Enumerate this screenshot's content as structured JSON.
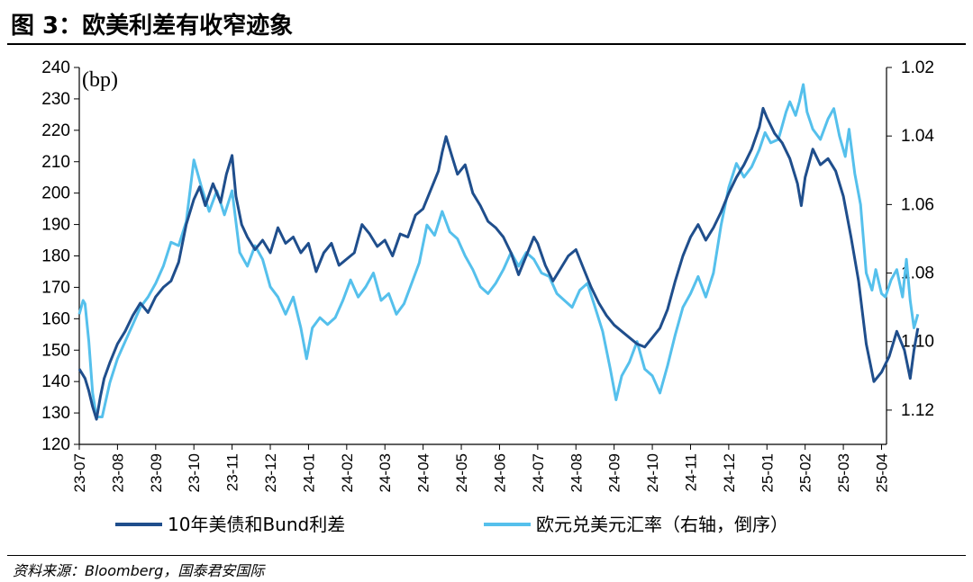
{
  "figure": {
    "title": "图 3：欧美利差有收窄迹象",
    "source": "资料来源：Bloomberg，国泰君安国际"
  },
  "chart_data": {
    "type": "line",
    "unit_label": "(bp)",
    "x_tick_labels": [
      "23-07",
      "23-08",
      "23-09",
      "23-10",
      "23-11",
      "23-12",
      "24-01",
      "24-02",
      "24-03",
      "24-04",
      "24-05",
      "24-06",
      "24-07",
      "24-08",
      "24-09",
      "24-10",
      "24-11",
      "24-12",
      "25-01",
      "25-02",
      "25-03",
      "25-04"
    ],
    "y_left": {
      "min": 120,
      "max": 240,
      "ticks": [
        120,
        130,
        140,
        150,
        160,
        170,
        180,
        190,
        200,
        210,
        220,
        230,
        240
      ]
    },
    "y_right": {
      "min": 1.02,
      "max": 1.13,
      "inverted": true,
      "ticks": [
        "1.02",
        "1.04",
        "1.06",
        "1.08",
        "1.10",
        "1.12"
      ]
    },
    "series": [
      {
        "name": "10年美债和Bund利差",
        "axis": "left",
        "color": "#1f4e8c",
        "points": [
          [
            0,
            144
          ],
          [
            0.15,
            141
          ],
          [
            0.25,
            137
          ],
          [
            0.35,
            132
          ],
          [
            0.45,
            128
          ],
          [
            0.55,
            135
          ],
          [
            0.65,
            141
          ],
          [
            0.8,
            146
          ],
          [
            1.0,
            152
          ],
          [
            1.2,
            156
          ],
          [
            1.4,
            161
          ],
          [
            1.6,
            165
          ],
          [
            1.8,
            162
          ],
          [
            2.0,
            167
          ],
          [
            2.2,
            170
          ],
          [
            2.4,
            172
          ],
          [
            2.6,
            178
          ],
          [
            2.8,
            190
          ],
          [
            3.0,
            198
          ],
          [
            3.15,
            202
          ],
          [
            3.3,
            196
          ],
          [
            3.5,
            203
          ],
          [
            3.7,
            197
          ],
          [
            3.85,
            206
          ],
          [
            4.0,
            212
          ],
          [
            4.1,
            199
          ],
          [
            4.25,
            190
          ],
          [
            4.4,
            186
          ],
          [
            4.6,
            182
          ],
          [
            4.8,
            185
          ],
          [
            5.0,
            181
          ],
          [
            5.2,
            189
          ],
          [
            5.4,
            184
          ],
          [
            5.6,
            186
          ],
          [
            5.8,
            181
          ],
          [
            6.0,
            184
          ],
          [
            6.2,
            175
          ],
          [
            6.4,
            181
          ],
          [
            6.6,
            184
          ],
          [
            6.8,
            177
          ],
          [
            7.0,
            179
          ],
          [
            7.2,
            181
          ],
          [
            7.4,
            190
          ],
          [
            7.6,
            187
          ],
          [
            7.8,
            183
          ],
          [
            8.0,
            185
          ],
          [
            8.2,
            180
          ],
          [
            8.4,
            187
          ],
          [
            8.6,
            186
          ],
          [
            8.8,
            193
          ],
          [
            9.0,
            195
          ],
          [
            9.2,
            201
          ],
          [
            9.4,
            207
          ],
          [
            9.5,
            213
          ],
          [
            9.6,
            218
          ],
          [
            9.75,
            212
          ],
          [
            9.9,
            206
          ],
          [
            10.1,
            209
          ],
          [
            10.3,
            200
          ],
          [
            10.5,
            196
          ],
          [
            10.7,
            191
          ],
          [
            10.9,
            189
          ],
          [
            11.1,
            186
          ],
          [
            11.3,
            181
          ],
          [
            11.5,
            174
          ],
          [
            11.7,
            180
          ],
          [
            11.9,
            186
          ],
          [
            12.0,
            184
          ],
          [
            12.2,
            177
          ],
          [
            12.4,
            172
          ],
          [
            12.6,
            176
          ],
          [
            12.8,
            180
          ],
          [
            13.0,
            182
          ],
          [
            13.2,
            176
          ],
          [
            13.4,
            170
          ],
          [
            13.6,
            165
          ],
          [
            13.8,
            161
          ],
          [
            14.0,
            158
          ],
          [
            14.2,
            156
          ],
          [
            14.4,
            154
          ],
          [
            14.6,
            152
          ],
          [
            14.8,
            151
          ],
          [
            15.0,
            154
          ],
          [
            15.2,
            157
          ],
          [
            15.4,
            163
          ],
          [
            15.6,
            172
          ],
          [
            15.8,
            180
          ],
          [
            16.0,
            186
          ],
          [
            16.2,
            190
          ],
          [
            16.4,
            185
          ],
          [
            16.6,
            189
          ],
          [
            16.8,
            194
          ],
          [
            17.0,
            200
          ],
          [
            17.2,
            205
          ],
          [
            17.4,
            209
          ],
          [
            17.6,
            214
          ],
          [
            17.8,
            221
          ],
          [
            17.9,
            227
          ],
          [
            18.0,
            224
          ],
          [
            18.2,
            219
          ],
          [
            18.4,
            216
          ],
          [
            18.6,
            211
          ],
          [
            18.8,
            203
          ],
          [
            18.9,
            196
          ],
          [
            19.0,
            205
          ],
          [
            19.2,
            214
          ],
          [
            19.4,
            209
          ],
          [
            19.6,
            211
          ],
          [
            19.8,
            207
          ],
          [
            20.0,
            199
          ],
          [
            20.2,
            186
          ],
          [
            20.4,
            172
          ],
          [
            20.6,
            152
          ],
          [
            20.8,
            140
          ],
          [
            21.0,
            143
          ],
          [
            21.2,
            148
          ],
          [
            21.4,
            156
          ],
          [
            21.6,
            150
          ],
          [
            21.75,
            141
          ],
          [
            21.85,
            150
          ],
          [
            21.95,
            157
          ]
        ]
      },
      {
        "name": "欧元兑美元汇率（右轴，倒序）",
        "axis": "right",
        "color": "#55c0ec",
        "points": [
          [
            0,
            1.092
          ],
          [
            0.1,
            1.088
          ],
          [
            0.15,
            1.089
          ],
          [
            0.25,
            1.1
          ],
          [
            0.35,
            1.115
          ],
          [
            0.45,
            1.122
          ],
          [
            0.6,
            1.122
          ],
          [
            0.8,
            1.112
          ],
          [
            1.0,
            1.105
          ],
          [
            1.2,
            1.1
          ],
          [
            1.4,
            1.095
          ],
          [
            1.6,
            1.09
          ],
          [
            1.8,
            1.087
          ],
          [
            2.0,
            1.083
          ],
          [
            2.2,
            1.078
          ],
          [
            2.4,
            1.071
          ],
          [
            2.6,
            1.072
          ],
          [
            2.8,
            1.065
          ],
          [
            3.0,
            1.047
          ],
          [
            3.2,
            1.055
          ],
          [
            3.4,
            1.062
          ],
          [
            3.6,
            1.056
          ],
          [
            3.8,
            1.063
          ],
          [
            4.0,
            1.056
          ],
          [
            4.2,
            1.074
          ],
          [
            4.4,
            1.078
          ],
          [
            4.6,
            1.072
          ],
          [
            4.8,
            1.076
          ],
          [
            5.0,
            1.084
          ],
          [
            5.2,
            1.087
          ],
          [
            5.4,
            1.092
          ],
          [
            5.6,
            1.087
          ],
          [
            5.8,
            1.096
          ],
          [
            5.95,
            1.105
          ],
          [
            6.1,
            1.096
          ],
          [
            6.3,
            1.093
          ],
          [
            6.5,
            1.095
          ],
          [
            6.7,
            1.093
          ],
          [
            6.9,
            1.088
          ],
          [
            7.1,
            1.082
          ],
          [
            7.3,
            1.087
          ],
          [
            7.5,
            1.084
          ],
          [
            7.7,
            1.08
          ],
          [
            7.9,
            1.088
          ],
          [
            8.1,
            1.086
          ],
          [
            8.3,
            1.092
          ],
          [
            8.5,
            1.089
          ],
          [
            8.7,
            1.083
          ],
          [
            8.9,
            1.077
          ],
          [
            9.1,
            1.066
          ],
          [
            9.3,
            1.069
          ],
          [
            9.5,
            1.062
          ],
          [
            9.7,
            1.068
          ],
          [
            9.9,
            1.07
          ],
          [
            10.1,
            1.075
          ],
          [
            10.3,
            1.079
          ],
          [
            10.5,
            1.084
          ],
          [
            10.7,
            1.086
          ],
          [
            10.9,
            1.083
          ],
          [
            11.1,
            1.079
          ],
          [
            11.3,
            1.074
          ],
          [
            11.5,
            1.078
          ],
          [
            11.7,
            1.074
          ],
          [
            11.9,
            1.076
          ],
          [
            12.1,
            1.08
          ],
          [
            12.3,
            1.081
          ],
          [
            12.5,
            1.086
          ],
          [
            12.7,
            1.088
          ],
          [
            12.9,
            1.09
          ],
          [
            13.1,
            1.085
          ],
          [
            13.3,
            1.083
          ],
          [
            13.5,
            1.09
          ],
          [
            13.7,
            1.097
          ],
          [
            13.9,
            1.108
          ],
          [
            14.05,
            1.117
          ],
          [
            14.2,
            1.11
          ],
          [
            14.4,
            1.106
          ],
          [
            14.6,
            1.1
          ],
          [
            14.8,
            1.108
          ],
          [
            15.0,
            1.11
          ],
          [
            15.2,
            1.115
          ],
          [
            15.4,
            1.107
          ],
          [
            15.6,
            1.098
          ],
          [
            15.8,
            1.09
          ],
          [
            16.0,
            1.086
          ],
          [
            16.2,
            1.081
          ],
          [
            16.4,
            1.087
          ],
          [
            16.6,
            1.08
          ],
          [
            16.8,
            1.066
          ],
          [
            17.0,
            1.055
          ],
          [
            17.2,
            1.048
          ],
          [
            17.4,
            1.052
          ],
          [
            17.6,
            1.049
          ],
          [
            17.8,
            1.044
          ],
          [
            17.95,
            1.039
          ],
          [
            18.1,
            1.042
          ],
          [
            18.3,
            1.041
          ],
          [
            18.5,
            1.033
          ],
          [
            18.6,
            1.03
          ],
          [
            18.75,
            1.034
          ],
          [
            18.85,
            1.03
          ],
          [
            18.95,
            1.025
          ],
          [
            19.05,
            1.033
          ],
          [
            19.2,
            1.038
          ],
          [
            19.4,
            1.041
          ],
          [
            19.6,
            1.035
          ],
          [
            19.75,
            1.032
          ],
          [
            19.9,
            1.04
          ],
          [
            20.05,
            1.046
          ],
          [
            20.15,
            1.038
          ],
          [
            20.3,
            1.051
          ],
          [
            20.45,
            1.06
          ],
          [
            20.6,
            1.08
          ],
          [
            20.75,
            1.085
          ],
          [
            20.85,
            1.079
          ],
          [
            21.0,
            1.086
          ],
          [
            21.1,
            1.087
          ],
          [
            21.25,
            1.082
          ],
          [
            21.4,
            1.079
          ],
          [
            21.55,
            1.087
          ],
          [
            21.65,
            1.076
          ],
          [
            21.75,
            1.088
          ],
          [
            21.85,
            1.096
          ],
          [
            21.95,
            1.092
          ]
        ]
      }
    ]
  }
}
